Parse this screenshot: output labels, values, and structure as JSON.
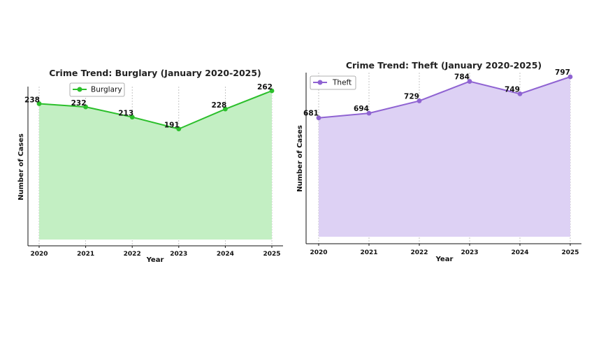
{
  "chart_data": [
    {
      "type": "area",
      "title": "Crime Trend: Burglary (January 2020-2025)",
      "xlabel": "Year",
      "ylabel": "Number of Cases",
      "categories": [
        "2020",
        "2021",
        "2022",
        "2023",
        "2024",
        "2025"
      ],
      "series": [
        {
          "name": "Burglary",
          "values": [
            238,
            232,
            213,
            191,
            228,
            262
          ]
        }
      ],
      "data_labels": [
        "238",
        "232",
        "213",
        "191",
        "228",
        "262"
      ],
      "ylim": [
        0,
        270
      ],
      "grid": "vertical dashed",
      "legend_position": "top-center",
      "line_color": "#2bbf2b",
      "fill_color": "#c3efc3"
    },
    {
      "type": "area",
      "title": "Crime Trend: Theft (January 2020-2025)",
      "xlabel": "Year",
      "ylabel": "Number of Cases",
      "categories": [
        "2020",
        "2021",
        "2022",
        "2023",
        "2024",
        "2025"
      ],
      "series": [
        {
          "name": "Theft",
          "values": [
            681,
            694,
            729,
            784,
            749,
            797
          ]
        }
      ],
      "data_labels": [
        "681",
        "694",
        "729",
        "784",
        "749",
        "797"
      ],
      "ylim": [
        0,
        810
      ],
      "grid": "vertical dashed",
      "legend_position": "top-left",
      "line_color": "#8f63d2",
      "fill_color": "#ddd1f4"
    }
  ]
}
